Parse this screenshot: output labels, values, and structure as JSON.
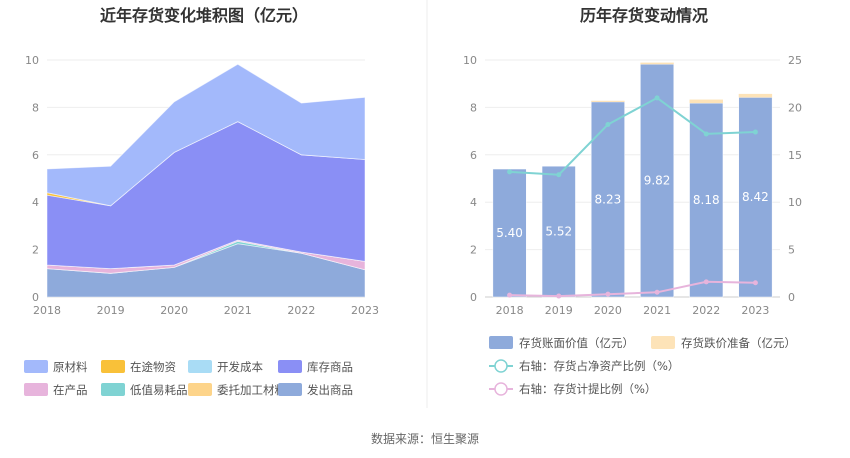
{
  "source_note": "数据来源：恒生聚源",
  "chart_data": [
    {
      "type": "area",
      "stacked": true,
      "title": "近年存货变化堆积图（亿元）",
      "categories": [
        "2018",
        "2019",
        "2020",
        "2021",
        "2022",
        "2023"
      ],
      "ylim": [
        0,
        10
      ],
      "yticks": [
        0,
        2,
        4,
        6,
        8,
        10
      ],
      "grid": true,
      "legend_position": "bottom",
      "series": [
        {
          "name": "发出商品",
          "color": "#8eaadb",
          "values": [
            1.2,
            1.0,
            1.25,
            2.25,
            1.85,
            1.15
          ]
        },
        {
          "name": "低值易耗品",
          "color": "#7fd3d3",
          "values": [
            0.0,
            0.0,
            0.0,
            0.1,
            0.0,
            0.0
          ]
        },
        {
          "name": "在产品",
          "color": "#e7b4dc",
          "values": [
            0.15,
            0.2,
            0.1,
            0.05,
            0.05,
            0.35
          ]
        },
        {
          "name": "开发成本",
          "color": "#a9dcf5",
          "values": [
            0.0,
            0.0,
            0.0,
            0.0,
            0.0,
            0.0
          ]
        },
        {
          "name": "委托加工材料",
          "color": "#fdd48a",
          "values": [
            0.0,
            0.0,
            0.0,
            0.0,
            0.0,
            0.0
          ]
        },
        {
          "name": "库存商品",
          "color": "#8a8ff5",
          "values": [
            2.95,
            2.65,
            4.75,
            5.0,
            4.1,
            4.3
          ]
        },
        {
          "name": "在途物资",
          "color": "#f9c139",
          "values": [
            0.1,
            0.0,
            0.0,
            0.0,
            0.0,
            0.0
          ]
        },
        {
          "name": "原材料",
          "color": "#a3b9fb",
          "values": [
            1.0,
            1.67,
            2.13,
            2.42,
            2.18,
            2.62
          ]
        }
      ],
      "legend_order": [
        "原材料",
        "在途物资",
        "开发成本",
        "库存商品",
        "在产品",
        "低值易耗品",
        "委托加工材料",
        "发出商品"
      ]
    },
    {
      "type": "bar",
      "title": "历年存货变动情况",
      "categories": [
        "2018",
        "2019",
        "2020",
        "2021",
        "2022",
        "2023"
      ],
      "ylim": [
        0,
        10
      ],
      "yticks": [
        0,
        2,
        4,
        6,
        8,
        10
      ],
      "y2lim": [
        0,
        25
      ],
      "y2ticks": [
        0,
        5,
        10,
        15,
        20,
        25
      ],
      "grid": true,
      "legend_position": "bottom",
      "series": [
        {
          "name": "存货账面价值（亿元）",
          "kind": "bar",
          "color": "#8eaadb",
          "values": [
            5.4,
            5.52,
            8.23,
            9.82,
            8.18,
            8.42
          ],
          "labels": [
            "5.40",
            "5.52",
            "8.23",
            "9.82",
            "8.18",
            "8.42"
          ]
        },
        {
          "name": "存货跌价准备（亿元）",
          "kind": "bar-stack",
          "color": "#fde3b8",
          "values": [
            0.0,
            0.0,
            0.05,
            0.07,
            0.15,
            0.15
          ]
        },
        {
          "name": "右轴：存货占净资产比例（%）",
          "kind": "line",
          "axis": "right",
          "color": "#7fd3d3",
          "values": [
            13.2,
            12.9,
            18.2,
            21.0,
            17.2,
            17.4
          ]
        },
        {
          "name": "右轴：存货计提比例（%）",
          "kind": "line",
          "axis": "right",
          "color": "#e7b4dc",
          "values": [
            0.2,
            0.1,
            0.3,
            0.5,
            1.6,
            1.5
          ]
        }
      ]
    }
  ]
}
